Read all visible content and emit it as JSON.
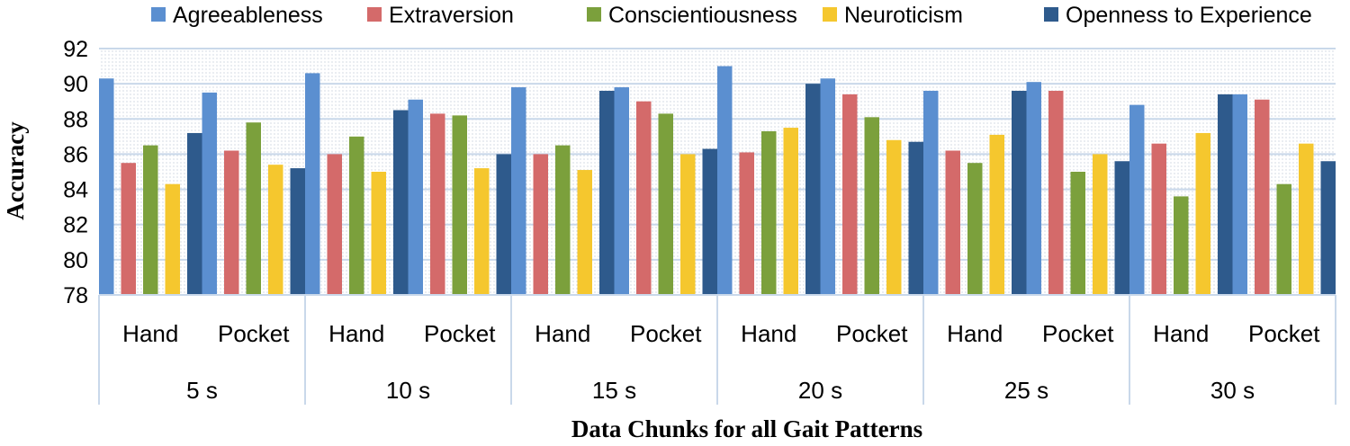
{
  "chart_data": {
    "type": "bar",
    "title": "",
    "xlabel": "Data Chunks for all Gait Patterns",
    "ylabel": "Accuracy",
    "ylim": [
      78,
      92
    ],
    "yticks": [
      78,
      80,
      82,
      84,
      86,
      88,
      90,
      92
    ],
    "grid": true,
    "legend_position": "top",
    "groups": [
      "5 s",
      "10 s",
      "15 s",
      "20 s",
      "25 s",
      "30 s"
    ],
    "subcategories": [
      "Hand",
      "Pocket"
    ],
    "categories": [
      "5 s Hand",
      "5 s Pocket",
      "10 s Hand",
      "10 s Pocket",
      "15 s Hand",
      "15 s Pocket",
      "20 s Hand",
      "20 s Pocket",
      "25 s Hand",
      "25 s Pocket",
      "30 s Hand",
      "30 s Pocket"
    ],
    "series": [
      {
        "name": "Agreeableness",
        "color": "#5b8fd0",
        "values": [
          90.3,
          89.5,
          90.6,
          89.1,
          89.8,
          89.8,
          91.0,
          90.3,
          89.6,
          90.1,
          88.8,
          89.4
        ]
      },
      {
        "name": "Extraversion",
        "color": "#d46a6a",
        "values": [
          85.5,
          86.2,
          86.0,
          88.3,
          86.0,
          89.0,
          86.1,
          89.4,
          86.2,
          89.6,
          86.6,
          89.1
        ]
      },
      {
        "name": "Conscientiousness",
        "color": "#7ba03c",
        "values": [
          86.5,
          87.8,
          87.0,
          88.2,
          86.5,
          88.3,
          87.3,
          88.1,
          85.5,
          85.0,
          83.6,
          84.3
        ]
      },
      {
        "name": "Neuroticism",
        "color": "#f5c72e",
        "values": [
          84.3,
          85.4,
          85.0,
          85.2,
          85.1,
          86.0,
          87.5,
          86.8,
          87.1,
          86.0,
          87.2,
          86.6
        ]
      },
      {
        "name": "Openness to Experience",
        "color": "#2e5a8c",
        "values": [
          87.2,
          85.2,
          88.5,
          86.0,
          89.6,
          86.3,
          90.0,
          86.7,
          89.6,
          85.6,
          89.4,
          85.6
        ]
      }
    ]
  }
}
